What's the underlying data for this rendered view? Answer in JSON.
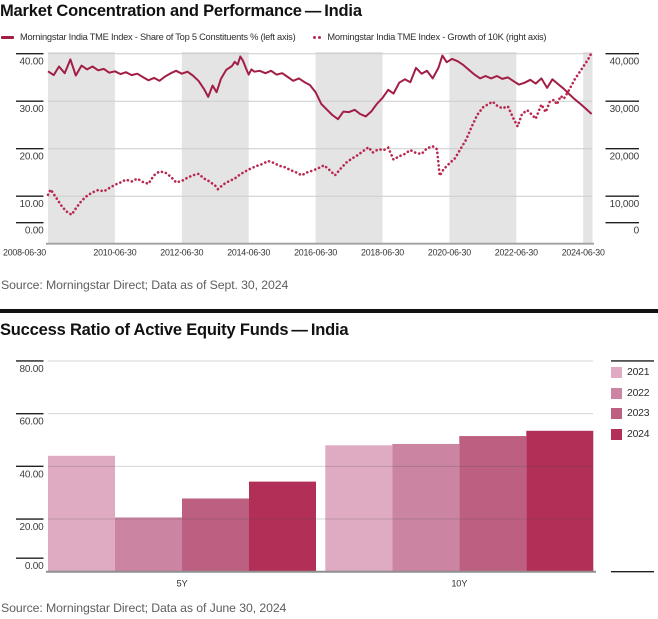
{
  "section1": {
    "title": "Market Concentration and Performance — India",
    "source": "Source: Morningstar Direct; Data as of Sept. 30, 2024",
    "legend": [
      {
        "label": "Morningstar India TME Index - Share of Top 5 Constituents % (left axis)",
        "marker": "solid-dash",
        "color": "#A21E45"
      },
      {
        "label": "Morningstar India TME Index - Growth of 10K (right axis)",
        "marker": "double-dot",
        "color": "#B9294F"
      }
    ]
  },
  "section2": {
    "title": "Success Ratio of Active Equity Funds — India",
    "source": "Source: Morningstar Direct; Data as of June 30, 2024",
    "legend": [
      {
        "label": "2021",
        "color": "#DEABC2"
      },
      {
        "label": "2022",
        "color": "#CB84A2"
      },
      {
        "label": "2023",
        "color": "#BD5F80"
      },
      {
        "label": "2024",
        "color": "#B23058"
      }
    ]
  },
  "style": {
    "band_color": "#E4E4E4",
    "gridline_color": "#CCCCCC",
    "baseline_color": "#A0A0A0",
    "tick_color": "#1F1F1F",
    "axis_text_color": "#3D3D3D",
    "date_text_color": "#333333"
  },
  "chart_data": [
    {
      "type": "line",
      "title": "Market Concentration and Performance — India",
      "x_axis": {
        "tick_labels": [
          "2008-06-30",
          "2010-06-30",
          "2012-06-30",
          "2014-06-30",
          "2016-06-30",
          "2018-06-30",
          "2020-06-30",
          "2022-06-30",
          "2024-06-30"
        ],
        "tick_positions": [
          2008.5,
          2010.5,
          2012.5,
          2014.5,
          2016.5,
          2018.5,
          2020.5,
          2022.5,
          2024.5
        ],
        "range": [
          2008.5,
          2024.78
        ]
      },
      "left_axis": {
        "label_texts": [
          "0.00",
          "10.00",
          "20.00",
          "30.00",
          "40.00"
        ],
        "values": [
          0,
          10,
          20,
          30,
          40
        ],
        "range": [
          0,
          40.4
        ]
      },
      "right_axis": {
        "label_texts": [
          "0",
          "10,000",
          "20,000",
          "30,000",
          "40,000"
        ],
        "values": [
          0,
          10000,
          20000,
          30000,
          40000
        ],
        "range": [
          0,
          40400
        ]
      },
      "shaded_bands": [
        [
          2008.5,
          2010.5
        ],
        [
          2012.5,
          2014.5
        ],
        [
          2016.5,
          2018.5
        ],
        [
          2020.5,
          2022.5
        ],
        [
          2024.5,
          2024.78
        ]
      ],
      "series": [
        {
          "name": "Morningstar India TME Index - Share of Top 5 Constituents % (left axis)",
          "axis": "left",
          "style": "solid",
          "color": "#A21E45",
          "points": [
            [
              2008.5,
              36.3
            ],
            [
              2008.67,
              35.5
            ],
            [
              2008.83,
              37.3
            ],
            [
              2009.0,
              35.9
            ],
            [
              2009.17,
              38.8
            ],
            [
              2009.33,
              35.4
            ],
            [
              2009.5,
              37.5
            ],
            [
              2009.67,
              36.7
            ],
            [
              2009.83,
              37.3
            ],
            [
              2010.0,
              36.5
            ],
            [
              2010.17,
              36.8
            ],
            [
              2010.33,
              36.0
            ],
            [
              2010.5,
              36.3
            ],
            [
              2010.67,
              35.7
            ],
            [
              2010.83,
              36.1
            ],
            [
              2011.0,
              35.5
            ],
            [
              2011.17,
              35.8
            ],
            [
              2011.33,
              35.1
            ],
            [
              2011.5,
              34.4
            ],
            [
              2011.67,
              34.9
            ],
            [
              2011.83,
              34.3
            ],
            [
              2012.0,
              35.2
            ],
            [
              2012.17,
              35.9
            ],
            [
              2012.33,
              36.4
            ],
            [
              2012.5,
              35.8
            ],
            [
              2012.67,
              36.2
            ],
            [
              2012.83,
              35.4
            ],
            [
              2013.0,
              34.3
            ],
            [
              2013.17,
              32.5
            ],
            [
              2013.29,
              30.9
            ],
            [
              2013.42,
              33.3
            ],
            [
              2013.54,
              31.9
            ],
            [
              2013.67,
              34.7
            ],
            [
              2013.83,
              36.6
            ],
            [
              2014.0,
              37.4
            ],
            [
              2014.08,
              38.3
            ],
            [
              2014.17,
              37.7
            ],
            [
              2014.25,
              39.4
            ],
            [
              2014.33,
              38.5
            ],
            [
              2014.42,
              36.9
            ],
            [
              2014.5,
              35.6
            ],
            [
              2014.58,
              36.7
            ],
            [
              2014.67,
              36.2
            ],
            [
              2014.83,
              36.4
            ],
            [
              2015.0,
              35.9
            ],
            [
              2015.17,
              36.4
            ],
            [
              2015.33,
              35.6
            ],
            [
              2015.5,
              35.9
            ],
            [
              2015.67,
              35.1
            ],
            [
              2015.83,
              34.3
            ],
            [
              2016.0,
              34.8
            ],
            [
              2016.17,
              34.0
            ],
            [
              2016.33,
              33.4
            ],
            [
              2016.5,
              31.9
            ],
            [
              2016.67,
              29.4
            ],
            [
              2016.83,
              28.3
            ],
            [
              2017.0,
              27.1
            ],
            [
              2017.17,
              26.2
            ],
            [
              2017.33,
              27.8
            ],
            [
              2017.5,
              27.7
            ],
            [
              2017.67,
              28.2
            ],
            [
              2017.83,
              27.3
            ],
            [
              2018.0,
              26.8
            ],
            [
              2018.17,
              27.9
            ],
            [
              2018.33,
              29.4
            ],
            [
              2018.5,
              30.7
            ],
            [
              2018.67,
              32.4
            ],
            [
              2018.83,
              31.6
            ],
            [
              2019.0,
              33.9
            ],
            [
              2019.17,
              34.6
            ],
            [
              2019.33,
              34.0
            ],
            [
              2019.5,
              37.0
            ],
            [
              2019.67,
              35.8
            ],
            [
              2019.83,
              36.4
            ],
            [
              2020.0,
              34.8
            ],
            [
              2020.17,
              37.0
            ],
            [
              2020.29,
              39.6
            ],
            [
              2020.42,
              38.2
            ],
            [
              2020.58,
              38.9
            ],
            [
              2020.75,
              38.4
            ],
            [
              2020.92,
              37.6
            ],
            [
              2021.08,
              36.6
            ],
            [
              2021.25,
              35.6
            ],
            [
              2021.42,
              34.8
            ],
            [
              2021.58,
              35.3
            ],
            [
              2021.75,
              34.8
            ],
            [
              2021.92,
              35.3
            ],
            [
              2022.08,
              34.7
            ],
            [
              2022.25,
              35.0
            ],
            [
              2022.42,
              34.2
            ],
            [
              2022.58,
              33.5
            ],
            [
              2022.75,
              33.9
            ],
            [
              2022.92,
              34.5
            ],
            [
              2023.08,
              33.7
            ],
            [
              2023.25,
              34.8
            ],
            [
              2023.42,
              32.8
            ],
            [
              2023.58,
              34.6
            ],
            [
              2023.75,
              33.6
            ],
            [
              2023.92,
              32.6
            ],
            [
              2024.08,
              31.5
            ],
            [
              2024.25,
              30.4
            ],
            [
              2024.42,
              29.4
            ],
            [
              2024.58,
              28.4
            ],
            [
              2024.75,
              27.3
            ]
          ]
        },
        {
          "name": "Morningstar India TME Index - Growth of 10K (right axis)",
          "axis": "right",
          "style": "dotted",
          "color": "#B9294F",
          "points": [
            [
              2008.5,
              10300
            ],
            [
              2008.58,
              11400
            ],
            [
              2008.75,
              9600
            ],
            [
              2008.92,
              7800
            ],
            [
              2009.08,
              6600
            ],
            [
              2009.21,
              6100
            ],
            [
              2009.33,
              7400
            ],
            [
              2009.5,
              9000
            ],
            [
              2009.67,
              10100
            ],
            [
              2009.83,
              10800
            ],
            [
              2010.0,
              11300
            ],
            [
              2010.17,
              11000
            ],
            [
              2010.33,
              11700
            ],
            [
              2010.5,
              12400
            ],
            [
              2010.67,
              12900
            ],
            [
              2010.83,
              13500
            ],
            [
              2011.0,
              13100
            ],
            [
              2011.17,
              13700
            ],
            [
              2011.33,
              13000
            ],
            [
              2011.5,
              12600
            ],
            [
              2011.67,
              14400
            ],
            [
              2011.83,
              15200
            ],
            [
              2012.0,
              15000
            ],
            [
              2012.17,
              14100
            ],
            [
              2012.33,
              12900
            ],
            [
              2012.5,
              13200
            ],
            [
              2012.67,
              13900
            ],
            [
              2012.83,
              14400
            ],
            [
              2013.0,
              14700
            ],
            [
              2013.17,
              13700
            ],
            [
              2013.33,
              13100
            ],
            [
              2013.5,
              12200
            ],
            [
              2013.58,
              11500
            ],
            [
              2013.75,
              12500
            ],
            [
              2013.92,
              13200
            ],
            [
              2014.08,
              13700
            ],
            [
              2014.25,
              14600
            ],
            [
              2014.42,
              15300
            ],
            [
              2014.58,
              15900
            ],
            [
              2014.75,
              16400
            ],
            [
              2014.92,
              16800
            ],
            [
              2015.08,
              17400
            ],
            [
              2015.25,
              17000
            ],
            [
              2015.42,
              16400
            ],
            [
              2015.58,
              16100
            ],
            [
              2015.75,
              15500
            ],
            [
              2015.92,
              15000
            ],
            [
              2016.08,
              14400
            ],
            [
              2016.25,
              15000
            ],
            [
              2016.42,
              15400
            ],
            [
              2016.58,
              15900
            ],
            [
              2016.75,
              16500
            ],
            [
              2016.92,
              15500
            ],
            [
              2017.08,
              14400
            ],
            [
              2017.25,
              15800
            ],
            [
              2017.42,
              17100
            ],
            [
              2017.58,
              17900
            ],
            [
              2017.75,
              18600
            ],
            [
              2017.92,
              19500
            ],
            [
              2018.08,
              20300
            ],
            [
              2018.21,
              19200
            ],
            [
              2018.38,
              19900
            ],
            [
              2018.54,
              19700
            ],
            [
              2018.67,
              20200
            ],
            [
              2018.83,
              17700
            ],
            [
              2019.0,
              18400
            ],
            [
              2019.17,
              18900
            ],
            [
              2019.33,
              19700
            ],
            [
              2019.5,
              19100
            ],
            [
              2019.67,
              18900
            ],
            [
              2019.83,
              20100
            ],
            [
              2020.0,
              20500
            ],
            [
              2020.13,
              19900
            ],
            [
              2020.21,
              14300
            ],
            [
              2020.33,
              15700
            ],
            [
              2020.5,
              16900
            ],
            [
              2020.67,
              18000
            ],
            [
              2020.83,
              19900
            ],
            [
              2021.0,
              21900
            ],
            [
              2021.17,
              24700
            ],
            [
              2021.33,
              27100
            ],
            [
              2021.5,
              28700
            ],
            [
              2021.67,
              29400
            ],
            [
              2021.79,
              29900
            ],
            [
              2021.92,
              29100
            ],
            [
              2022.08,
              28500
            ],
            [
              2022.25,
              28900
            ],
            [
              2022.42,
              26300
            ],
            [
              2022.54,
              24700
            ],
            [
              2022.67,
              27300
            ],
            [
              2022.83,
              28100
            ],
            [
              2022.96,
              27200
            ],
            [
              2023.08,
              26300
            ],
            [
              2023.25,
              29300
            ],
            [
              2023.38,
              27700
            ],
            [
              2023.5,
              29900
            ],
            [
              2023.63,
              30300
            ],
            [
              2023.71,
              29300
            ],
            [
              2023.83,
              31100
            ],
            [
              2023.92,
              30500
            ],
            [
              2024.08,
              32400
            ],
            [
              2024.25,
              34600
            ],
            [
              2024.42,
              36400
            ],
            [
              2024.58,
              38100
            ],
            [
              2024.67,
              39100
            ],
            [
              2024.75,
              40200
            ]
          ]
        }
      ],
      "source": "Source: Morningstar Direct; Data as of Sept. 30, 2024",
      "legend_position": "top-left",
      "grid": true
    },
    {
      "type": "bar",
      "title": "Success Ratio of Active Equity Funds — India",
      "categories": [
        "5Y",
        "10Y"
      ],
      "series": [
        {
          "name": "2021",
          "color": "#DEABC2",
          "values": [
            44.0,
            48.0
          ]
        },
        {
          "name": "2022",
          "color": "#CB84A2",
          "values": [
            20.6,
            48.5
          ]
        },
        {
          "name": "2023",
          "color": "#BD5F80",
          "values": [
            27.8,
            51.5
          ]
        },
        {
          "name": "2024",
          "color": "#B23058",
          "values": [
            34.2,
            53.5
          ]
        }
      ],
      "y_axis": {
        "label_texts": [
          "0.00",
          "20.00",
          "40.00",
          "60.00",
          "80.00"
        ],
        "values": [
          0,
          20,
          40,
          60,
          80
        ],
        "range": [
          0,
          84
        ]
      },
      "legend_position": "right",
      "source": "Source: Morningstar Direct; Data as of June 30, 2024",
      "grid": true
    }
  ]
}
